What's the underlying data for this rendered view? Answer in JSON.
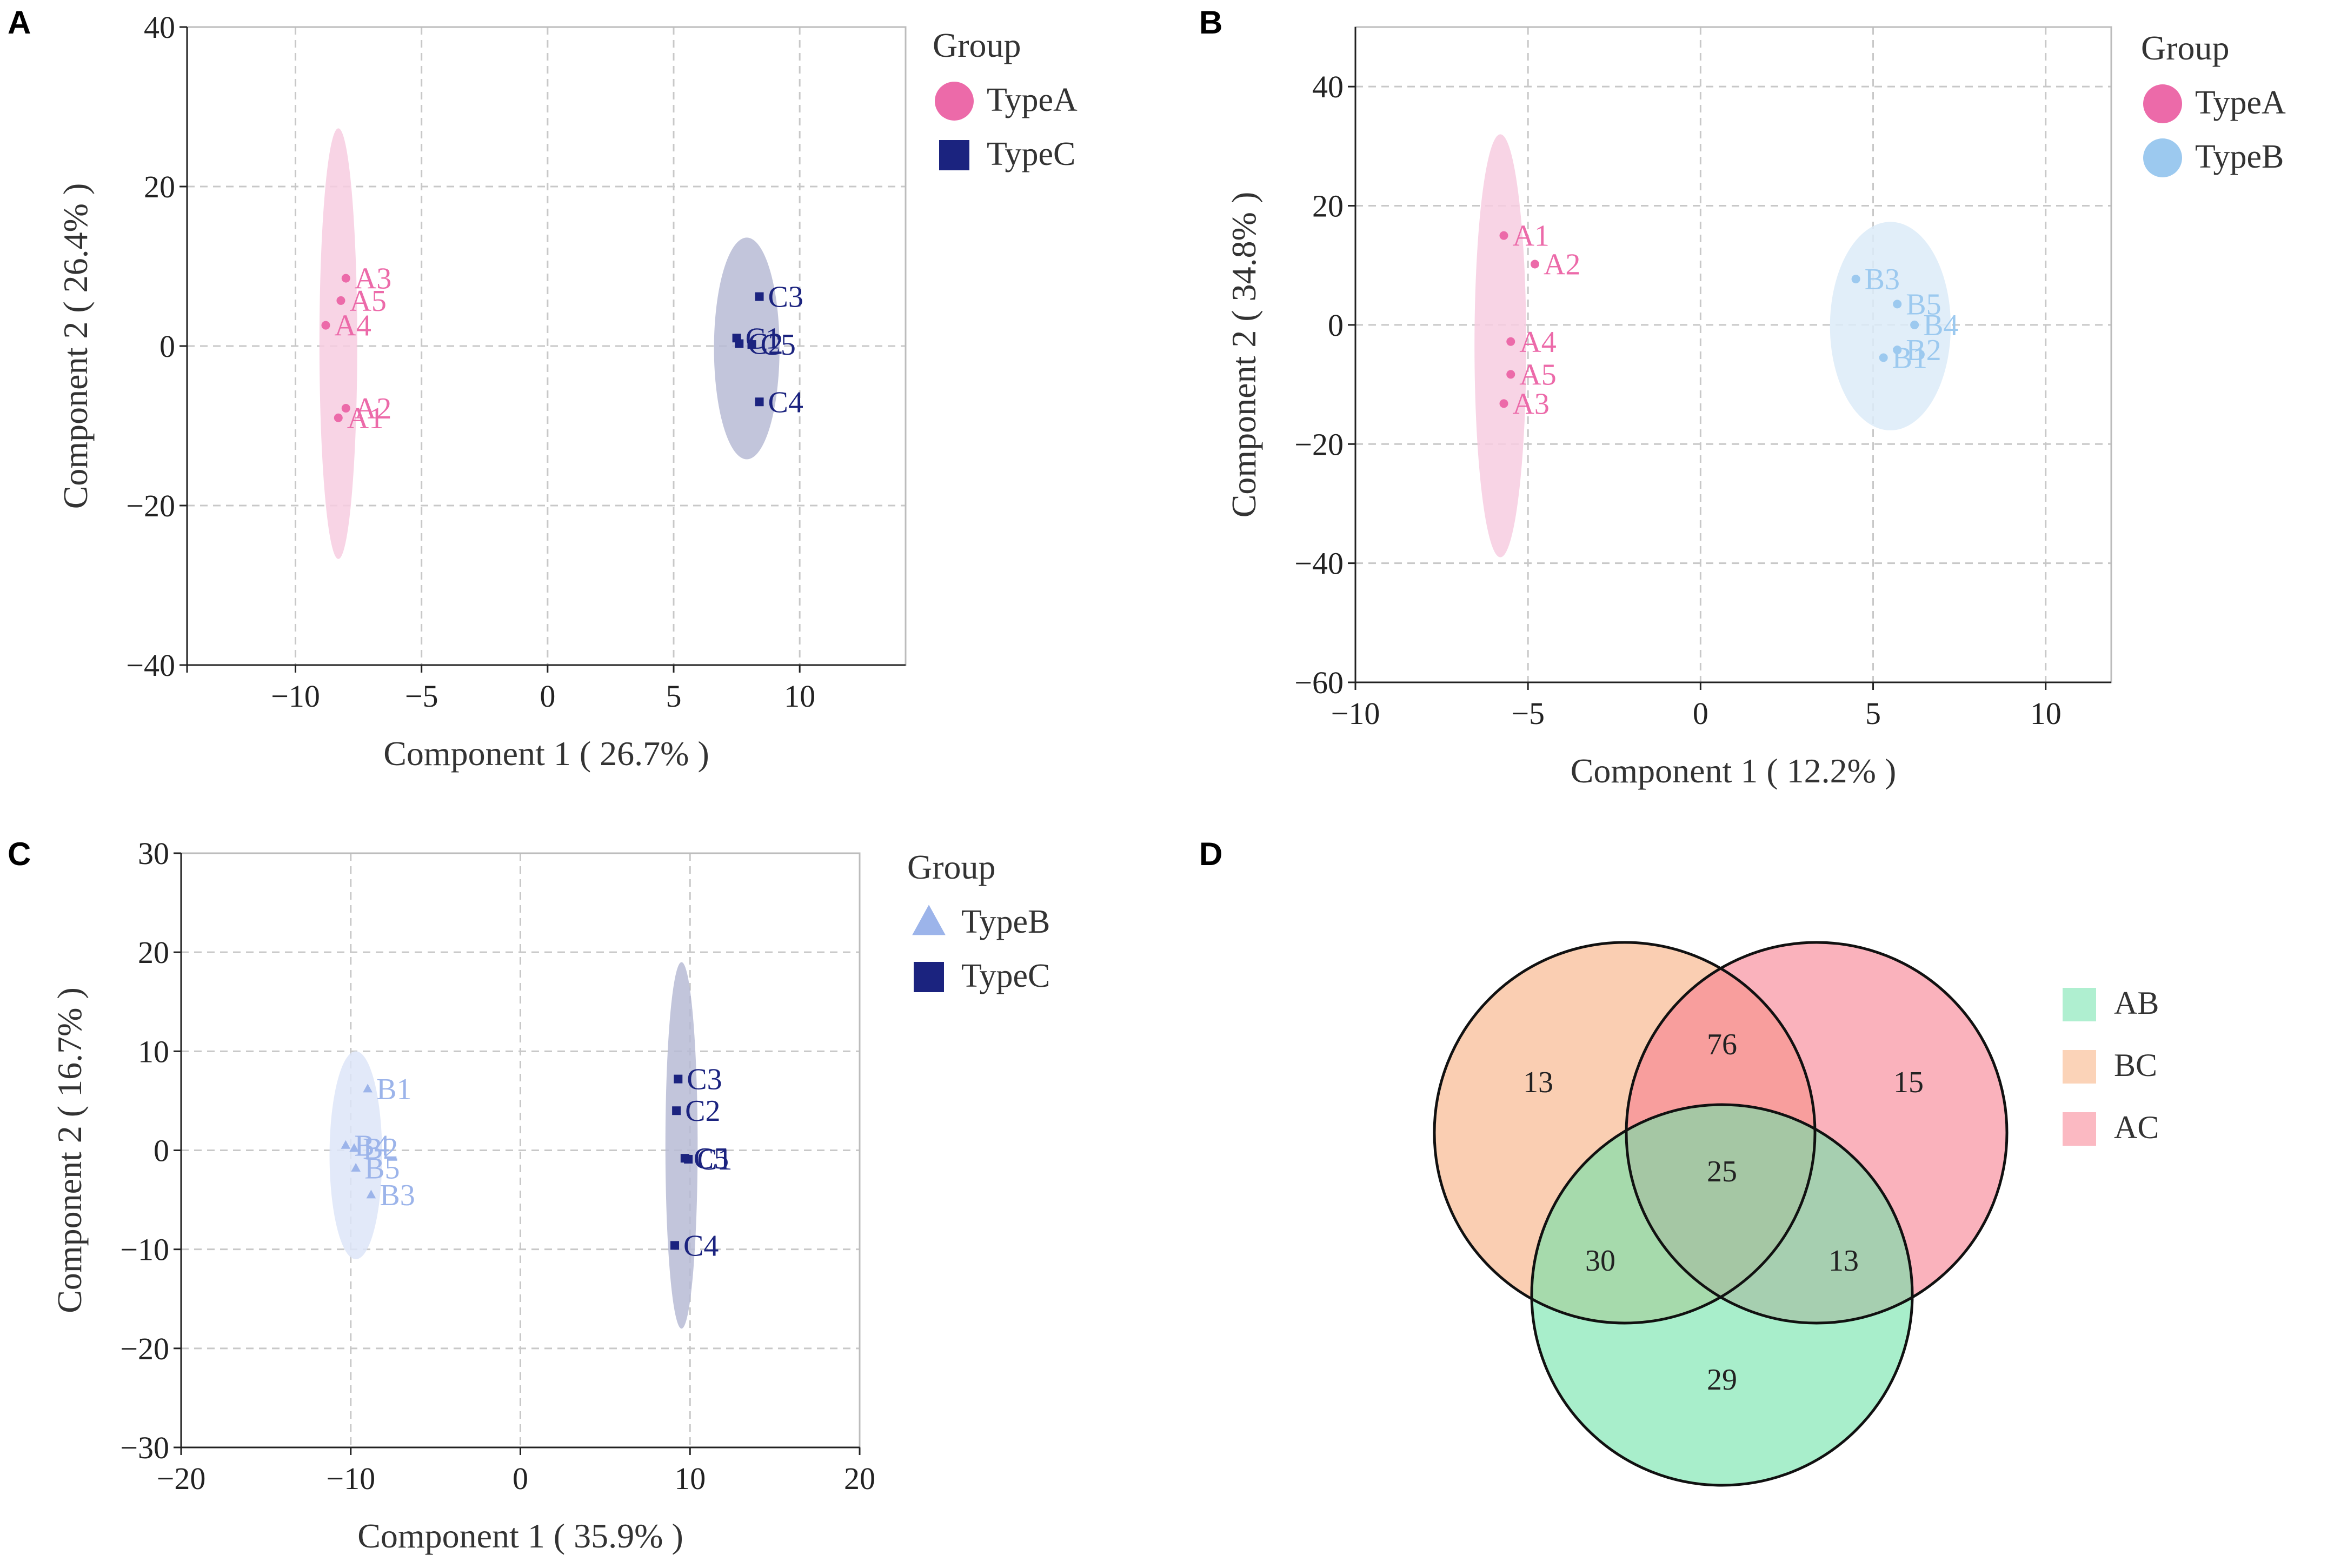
{
  "chart_data": [
    {
      "panel": "A",
      "type": "scatter",
      "title": "",
      "xlabel": "Component 1 ( 26.7% )",
      "ylabel": "Component 2 ( 26.4% )",
      "xlim": [
        -14.3,
        14.2
      ],
      "ylim": [
        -40,
        40
      ],
      "xticks": [
        -10,
        -5,
        0,
        5,
        10
      ],
      "yticks": [
        -40,
        -20,
        0,
        20,
        40
      ],
      "legend_title": "Group",
      "series": [
        {
          "name": "TypeA",
          "marker": "circle",
          "color": "#ec6aa9",
          "fill": "#f7cde0",
          "ellipse": {
            "cx": -8.3,
            "cy": 0.3,
            "rx": 0.75,
            "ry": 27,
            "angle": 0
          },
          "points": [
            {
              "label": "A1",
              "x": -8.3,
              "y": -9.0
            },
            {
              "label": "A2",
              "x": -8.0,
              "y": -7.8
            },
            {
              "label": "A3",
              "x": -8.0,
              "y": 8.5
            },
            {
              "label": "A4",
              "x": -8.8,
              "y": 2.6
            },
            {
              "label": "A5",
              "x": -8.2,
              "y": 5.7
            }
          ]
        },
        {
          "name": "TypeC",
          "marker": "square",
          "color": "#1b237f",
          "fill": "#b7bbd5",
          "ellipse": {
            "cx": 7.9,
            "cy": -0.3,
            "rx": 1.3,
            "ry": 13.9,
            "angle": 0
          },
          "points": [
            {
              "label": "C1",
              "x": 7.5,
              "y": 1.0
            },
            {
              "label": "C2",
              "x": 7.6,
              "y": 0.3
            },
            {
              "label": "C3",
              "x": 8.4,
              "y": 6.2
            },
            {
              "label": "C4",
              "x": 8.4,
              "y": -7.0
            },
            {
              "label": "C5",
              "x": 8.1,
              "y": 0.2
            }
          ]
        }
      ]
    },
    {
      "panel": "B",
      "type": "scatter",
      "title": "",
      "xlabel": "Component 1 ( 12.2% )",
      "ylabel": "Component 2 ( 34.8% )",
      "xlim": [
        -10,
        11.9
      ],
      "ylim": [
        -60,
        50
      ],
      "xticks": [
        -10,
        -5,
        0,
        5,
        10
      ],
      "yticks": [
        -60,
        -40,
        -20,
        0,
        20,
        40
      ],
      "legend_title": "Group",
      "series": [
        {
          "name": "TypeA",
          "marker": "circle",
          "color": "#ec6aa9",
          "fill": "#f7cde0",
          "ellipse": {
            "cx": -5.8,
            "cy": -3.5,
            "rx": 0.75,
            "ry": 35.5,
            "angle": 0
          },
          "points": [
            {
              "label": "A1",
              "x": -5.7,
              "y": 15.0
            },
            {
              "label": "A2",
              "x": -4.8,
              "y": 10.2
            },
            {
              "label": "A3",
              "x": -5.7,
              "y": -13.2
            },
            {
              "label": "A4",
              "x": -5.5,
              "y": -2.8
            },
            {
              "label": "A5",
              "x": -5.5,
              "y": -8.3
            }
          ]
        },
        {
          "name": "TypeB",
          "marker": "circle",
          "color": "#9cc9ef",
          "fill": "#dcebf8",
          "ellipse": {
            "cx": 5.5,
            "cy": -0.2,
            "rx": 1.75,
            "ry": 17.5,
            "angle": 0
          },
          "points": [
            {
              "label": "B1",
              "x": 5.3,
              "y": -5.5
            },
            {
              "label": "B2",
              "x": 5.7,
              "y": -4.2
            },
            {
              "label": "B3",
              "x": 4.5,
              "y": 7.7
            },
            {
              "label": "B4",
              "x": 6.2,
              "y": 0.0
            },
            {
              "label": "B5",
              "x": 5.7,
              "y": 3.5
            }
          ]
        }
      ]
    },
    {
      "panel": "C",
      "type": "scatter",
      "title": "",
      "xlabel": "Component 1 ( 35.9% )",
      "ylabel": "Component 2 ( 16.7% )",
      "xlim": [
        -20,
        20
      ],
      "ylim": [
        -30,
        30
      ],
      "xticks": [
        -20,
        -10,
        0,
        10,
        20
      ],
      "yticks": [
        -30,
        -20,
        -10,
        0,
        10,
        20,
        30
      ],
      "legend_title": "Group",
      "series": [
        {
          "name": "TypeB",
          "marker": "triangle",
          "color": "#9cb4ea",
          "fill": "#dde5f8",
          "ellipse": {
            "cx": -9.7,
            "cy": -0.5,
            "rx": 1.55,
            "ry": 10.5,
            "angle": 0
          },
          "points": [
            {
              "label": "B1",
              "x": -9.0,
              "y": 6.2
            },
            {
              "label": "B2",
              "x": -9.8,
              "y": 0.2
            },
            {
              "label": "B3",
              "x": -8.8,
              "y": -4.5
            },
            {
              "label": "B4",
              "x": -10.3,
              "y": 0.5
            },
            {
              "label": "B5",
              "x": -9.7,
              "y": -1.8
            }
          ]
        },
        {
          "name": "TypeC",
          "marker": "square",
          "color": "#1b237f",
          "fill": "#b7bbd5",
          "ellipse": {
            "cx": 9.5,
            "cy": 0.5,
            "rx": 0.95,
            "ry": 18.5,
            "angle": 0
          },
          "points": [
            {
              "label": "C1",
              "x": 9.9,
              "y": -0.9
            },
            {
              "label": "C2",
              "x": 9.2,
              "y": 4.0
            },
            {
              "label": "C3",
              "x": 9.3,
              "y": 7.2
            },
            {
              "label": "C4",
              "x": 9.1,
              "y": -9.6
            },
            {
              "label": "C5",
              "x": 9.7,
              "y": -0.8
            }
          ]
        }
      ]
    },
    {
      "panel": "D",
      "type": "venn",
      "title": "",
      "sets": [
        {
          "name": "AB",
          "color": "#6ee2a9"
        },
        {
          "name": "BC",
          "color": "#f7ae7e"
        },
        {
          "name": "AC",
          "color": "#f77f8f"
        }
      ],
      "regions": [
        {
          "sets": [
            "BC"
          ],
          "value": 13
        },
        {
          "sets": [
            "AC"
          ],
          "value": 15
        },
        {
          "sets": [
            "AB"
          ],
          "value": 29
        },
        {
          "sets": [
            "BC",
            "AC"
          ],
          "value": 76
        },
        {
          "sets": [
            "BC",
            "AB"
          ],
          "value": 30
        },
        {
          "sets": [
            "AC",
            "AB"
          ],
          "value": 13
        },
        {
          "sets": [
            "BC",
            "AC",
            "AB"
          ],
          "value": 25
        }
      ]
    }
  ],
  "panel_labels": [
    "A",
    "B",
    "C",
    "D"
  ]
}
